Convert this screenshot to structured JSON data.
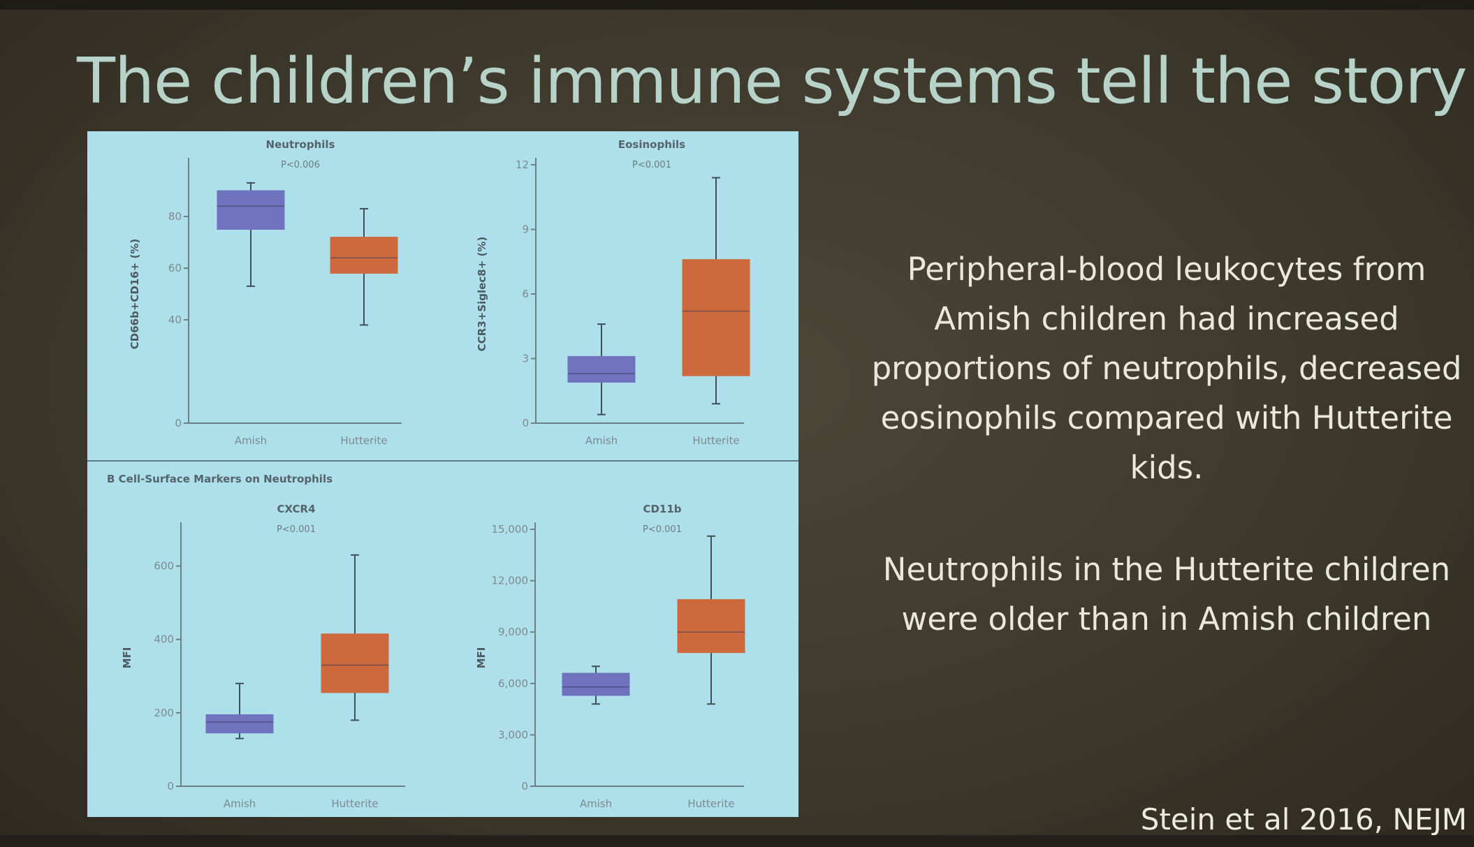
{
  "slide": {
    "title": "The children’s immune systems tell the story",
    "description_1": "Peripheral-blood leukocytes from Amish children had increased proportions of neutrophils, decreased eosinophils compared with Hutterite kids.",
    "description_2": "Neutrophils in the Hutterite children were older than in Amish children",
    "citation": "Stein et al 2016, NEJM",
    "section_b_label": "B   Cell-Surface Markers on Neutrophils"
  },
  "colors": {
    "amish": "#6f73bd",
    "hutterite": "#cc6a3e",
    "figure_background": "#aee0ec",
    "title_text": "#b7d3c9"
  },
  "chart_data": [
    {
      "type": "box",
      "title": "Neutrophils",
      "pvalue": "P<0.006",
      "ylabel": "CD66b+CD16+ (%)",
      "categories": [
        "Amish",
        "Hutterite"
      ],
      "yticks": [
        0,
        40,
        60,
        80
      ],
      "ylim": [
        0,
        100
      ],
      "series": [
        {
          "name": "Amish",
          "min": 53,
          "q1": 75,
          "median": 84,
          "q3": 90,
          "max": 93
        },
        {
          "name": "Hutterite",
          "min": 38,
          "q1": 58,
          "median": 64,
          "q3": 72,
          "max": 83
        }
      ]
    },
    {
      "type": "box",
      "title": "Eosinophils",
      "pvalue": "P<0.001",
      "ylabel": "CCR3+Siglec8+ (%)",
      "categories": [
        "Amish",
        "Hutterite"
      ],
      "yticks": [
        0,
        3,
        6,
        9,
        12
      ],
      "ylim": [
        0,
        12
      ],
      "series": [
        {
          "name": "Amish",
          "min": 0.4,
          "q1": 1.9,
          "median": 2.3,
          "q3": 3.1,
          "max": 4.6
        },
        {
          "name": "Hutterite",
          "min": 0.9,
          "q1": 2.2,
          "median": 5.2,
          "q3": 7.6,
          "max": 11.4
        }
      ]
    },
    {
      "type": "box",
      "title": "CXCR4",
      "pvalue": "P<0.001",
      "ylabel": "MFI",
      "categories": [
        "Amish",
        "Hutterite"
      ],
      "yticks": [
        0,
        200,
        400,
        600
      ],
      "ylim": [
        0,
        700
      ],
      "series": [
        {
          "name": "Amish",
          "min": 130,
          "q1": 145,
          "median": 175,
          "q3": 195,
          "max": 280
        },
        {
          "name": "Hutterite",
          "min": 180,
          "q1": 255,
          "median": 330,
          "q3": 415,
          "max": 630
        }
      ]
    },
    {
      "type": "box",
      "title": "CD11b",
      "pvalue": "P<0.001",
      "ylabel": "MFI",
      "categories": [
        "Amish",
        "Hutterite"
      ],
      "yticks": [
        0,
        3000,
        6000,
        9000,
        12000,
        15000
      ],
      "ytick_labels": [
        "0",
        "3,000",
        "6,000",
        "9,000",
        "12,000",
        "15,000"
      ],
      "ylim": [
        0,
        15000
      ],
      "series": [
        {
          "name": "Amish",
          "min": 4800,
          "q1": 5300,
          "median": 5800,
          "q3": 6600,
          "max": 7000
        },
        {
          "name": "Hutterite",
          "min": 4800,
          "q1": 7800,
          "median": 9000,
          "q3": 10900,
          "max": 14600
        }
      ]
    }
  ]
}
